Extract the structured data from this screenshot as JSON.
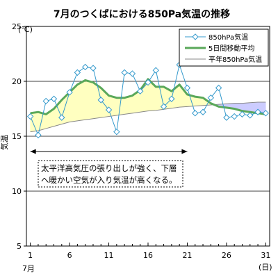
{
  "chart_data": {
    "type": "line",
    "title": "7月のつくばにおける850Pa気温の推移",
    "ylabel": "気温",
    "y_unit": "(℃)",
    "x_unit": "(日)",
    "x_month": "7月",
    "xlim": [
      1,
      31
    ],
    "ylim": [
      5,
      25
    ],
    "x_ticks": [
      1,
      6,
      11,
      16,
      21,
      26,
      31
    ],
    "y_ticks": [
      5,
      10,
      15,
      20,
      25
    ],
    "grid": "horizontal",
    "legend_position": "top-right",
    "x": [
      1,
      2,
      3,
      4,
      5,
      6,
      7,
      8,
      9,
      10,
      11,
      12,
      13,
      14,
      15,
      16,
      17,
      18,
      19,
      20,
      21,
      22,
      23,
      24,
      25,
      26,
      27,
      28,
      29,
      30,
      31
    ],
    "series": [
      {
        "name": "850hPa気温",
        "style": "line-diamond",
        "color": "#3399cc",
        "values": [
          16.8,
          15.1,
          18.2,
          18.4,
          16.7,
          19.0,
          20.8,
          21.3,
          21.2,
          18.3,
          17.4,
          15.4,
          20.8,
          20.7,
          19.1,
          19.9,
          21.0,
          17.7,
          18.4,
          21.5,
          19.4,
          17.1,
          17.2,
          18.5,
          19.4,
          16.7,
          16.8,
          17.0,
          16.9,
          17.2,
          17.1
        ]
      },
      {
        "name": "5日間移動平均",
        "style": "thick-line",
        "color": "#5aa85a",
        "values": [
          17.1,
          17.2,
          17.0,
          17.5,
          18.3,
          19.0,
          19.7,
          20.1,
          19.9,
          19.4,
          18.7,
          18.5,
          18.5,
          18.7,
          19.2,
          20.2,
          19.5,
          19.5,
          19.1,
          19.7,
          18.8,
          18.6,
          18.5,
          18.0,
          17.7,
          17.6,
          17.5,
          17.3,
          17.2,
          17.1,
          17.0
        ]
      },
      {
        "name": "平年850hPa気温",
        "style": "thin-line",
        "color": "#888888",
        "values": [
          15.4,
          15.5,
          15.7,
          15.9,
          16.1,
          16.3,
          16.4,
          16.5,
          16.6,
          16.7,
          16.8,
          16.9,
          17.0,
          17.1,
          17.2,
          17.3,
          17.35,
          17.45,
          17.55,
          17.65,
          17.7,
          17.75,
          17.8,
          17.85,
          17.9,
          17.95,
          18.0,
          18.0,
          18.05,
          18.1,
          18.1
        ]
      }
    ],
    "fills": {
      "above_normal": "#ffffc0",
      "below_normal": "#ccccff"
    },
    "annotation": {
      "line1": "太平洋高気圧の張り出しが強く、下層",
      "line2": "へ暖かい空気が入り気温が高くなる。",
      "span": [
        1,
        21
      ]
    }
  }
}
